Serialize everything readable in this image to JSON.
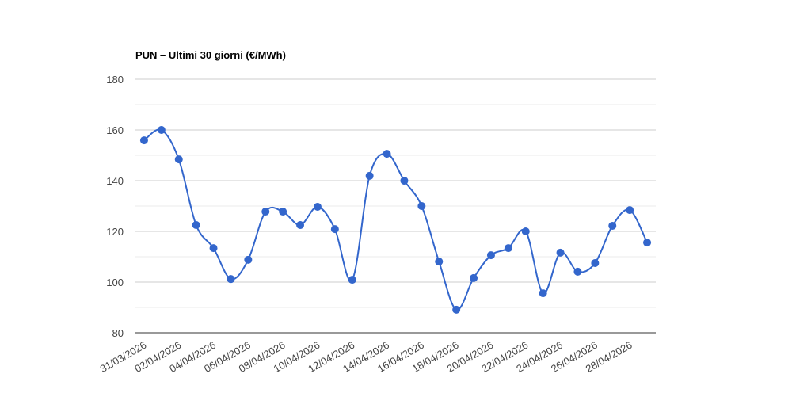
{
  "chart_data": {
    "type": "line",
    "title": "PUN – Ultimi 30 giorni (€/MWh)",
    "categories": [
      "31/03/2026",
      null,
      "02/04/2026",
      null,
      "04/04/2026",
      null,
      "06/04/2026",
      null,
      "08/04/2026",
      null,
      "10/04/2026",
      null,
      "12/04/2026",
      null,
      "14/04/2026",
      null,
      "16/04/2026",
      null,
      "18/04/2026",
      null,
      "20/04/2026",
      null,
      "22/04/2026",
      null,
      "24/04/2026",
      null,
      "26/04/2026",
      null,
      "28/04/2026",
      null
    ],
    "series": [
      {
        "name": "PUN",
        "color": "#3366cc",
        "values": [
          155.9,
          160,
          148.4,
          122.5,
          113.4,
          101.2,
          108.8,
          127.8,
          127.8,
          122.5,
          129.7,
          120.9,
          100.9,
          141.9,
          150.6,
          140,
          130,
          108.1,
          89.1,
          101.6,
          110.6,
          113.4,
          120,
          95.6,
          111.6,
          104.1,
          107.5,
          122.2,
          128.4,
          115.6
        ]
      }
    ],
    "ylim": [
      80,
      180
    ],
    "yticks": [
      80,
      100,
      120,
      140,
      160,
      180
    ],
    "yminorticks": [
      90,
      110,
      130,
      150,
      170
    ],
    "grid": true,
    "smooth": true
  }
}
